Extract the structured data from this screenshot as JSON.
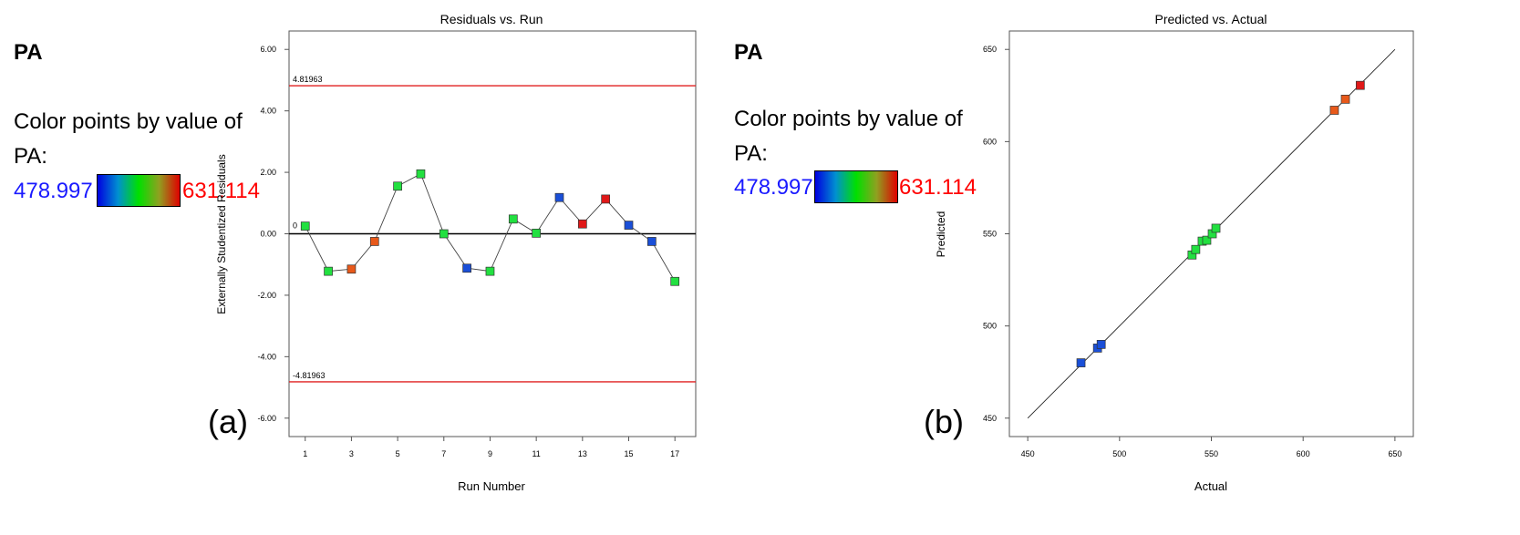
{
  "panel_a": {
    "letter": "(a)",
    "legend": {
      "title": "PA",
      "caption_line1": "Color points by value of",
      "caption_line2": "PA:",
      "min": "478.997",
      "max": "631.114"
    }
  },
  "panel_b": {
    "letter": "(b)",
    "legend": {
      "title": "PA",
      "caption_line1": "Color points by value of",
      "caption_line2": "PA:",
      "min": "478.997",
      "max": "631.114"
    }
  },
  "colors": {
    "limit_line": "#e02020",
    "low": "#0000e0",
    "high": "#e00000",
    "marker_blue": "#1a4fd8",
    "marker_green": "#22e040",
    "marker_orange": "#e8591a",
    "marker_red": "#e01818"
  },
  "chart_data": [
    {
      "type": "line",
      "title": "Residuals vs. Run",
      "xlabel": "Run Number",
      "ylabel": "Externally Studentized Residuals",
      "xlim": [
        0.3,
        17.9
      ],
      "ylim": [
        -6.6,
        6.6
      ],
      "x_ticks": [
        1,
        3,
        5,
        7,
        9,
        11,
        13,
        15,
        17
      ],
      "y_ticks": [
        -6,
        -4,
        -2,
        0,
        2,
        4,
        6
      ],
      "y_tick_labels": [
        "-6.00",
        "-4.00",
        "-2.00",
        "0.00",
        "2.00",
        "4.00",
        "6.00"
      ],
      "upper_limit": 4.81963,
      "upper_limit_label": "4.81963",
      "lower_limit": -4.81963,
      "lower_limit_label": "-4.81963",
      "zero_label": "0",
      "series": [
        {
          "x": [
            1,
            2,
            3,
            4,
            5,
            6,
            7,
            8,
            9,
            10,
            11,
            12,
            13,
            14,
            15,
            16,
            17
          ],
          "values": [
            0.25,
            -1.22,
            -1.15,
            -0.25,
            1.55,
            1.95,
            0.0,
            -1.12,
            -1.22,
            0.48,
            0.02,
            1.18,
            0.32,
            1.13,
            0.28,
            -0.25,
            -1.55
          ],
          "colors": [
            "marker_green",
            "marker_green",
            "marker_orange",
            "marker_orange",
            "marker_green",
            "marker_green",
            "marker_green",
            "marker_blue",
            "marker_green",
            "marker_green",
            "marker_green",
            "marker_blue",
            "marker_red",
            "marker_red",
            "marker_blue",
            "marker_blue",
            "marker_green"
          ]
        }
      ]
    },
    {
      "type": "scatter",
      "title": "Predicted vs. Actual",
      "xlabel": "Actual",
      "ylabel": "Predicted",
      "xlim": [
        440,
        660
      ],
      "ylim": [
        440,
        660
      ],
      "x_ticks": [
        450,
        500,
        550,
        600,
        650
      ],
      "y_ticks": [
        450,
        500,
        550,
        600,
        650
      ],
      "reference_line": [
        450,
        650
      ],
      "series": [
        {
          "x": [
            479.0,
            488.0,
            490.0,
            539.5,
            541.5,
            545.0,
            547.5,
            550.5,
            552.5,
            617.0,
            623.0,
            631.1
          ],
          "values": [
            480.0,
            488.0,
            490.0,
            538.5,
            541.5,
            546.0,
            546.5,
            550.0,
            553.0,
            617.0,
            623.0,
            630.5
          ],
          "colors": [
            "marker_blue",
            "marker_blue",
            "marker_blue",
            "marker_green",
            "marker_green",
            "marker_green",
            "marker_green",
            "marker_green",
            "marker_green",
            "marker_orange",
            "marker_orange",
            "marker_red"
          ]
        }
      ]
    }
  ]
}
